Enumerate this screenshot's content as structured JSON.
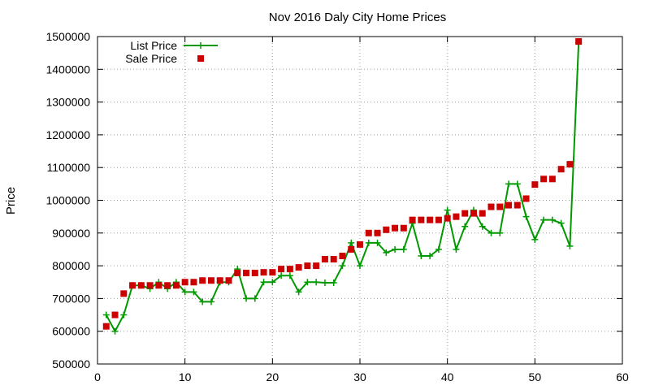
{
  "chart_data": {
    "type": "line",
    "title": "Nov 2016 Daly City Home Prices",
    "xlabel": "",
    "ylabel": "Price",
    "xlim": [
      0,
      60
    ],
    "ylim": [
      500000,
      1500000
    ],
    "xticks": [
      0,
      10,
      20,
      30,
      40,
      50,
      60
    ],
    "yticks": [
      500000,
      600000,
      700000,
      800000,
      900000,
      1000000,
      1100000,
      1200000,
      1300000,
      1400000,
      1500000
    ],
    "xtick_labels": [
      "0",
      "10",
      "20",
      "30",
      "40",
      "50",
      "60"
    ],
    "ytick_labels": [
      "500000",
      "600000",
      "700000",
      "800000",
      "900000",
      "1000000",
      "1100000",
      "1200000",
      "1300000",
      "1400000",
      "1500000"
    ],
    "grid": true,
    "legend_position": "top-left",
    "x": [
      1,
      2,
      3,
      4,
      5,
      6,
      7,
      8,
      9,
      10,
      11,
      12,
      13,
      14,
      15,
      16,
      17,
      18,
      19,
      20,
      21,
      22,
      23,
      24,
      25,
      26,
      27,
      28,
      29,
      30,
      31,
      32,
      33,
      34,
      35,
      36,
      37,
      38,
      39,
      40,
      41,
      42,
      43,
      44,
      45,
      46,
      47,
      48,
      49,
      50,
      51,
      52,
      53,
      54,
      55
    ],
    "series": [
      {
        "name": "List Price",
        "style": "linespoints",
        "color": "#009900",
        "values": [
          650000,
          600000,
          650000,
          740000,
          740000,
          730000,
          750000,
          730000,
          750000,
          720000,
          720000,
          690000,
          690000,
          750000,
          750000,
          790000,
          700000,
          700000,
          750000,
          750000,
          770000,
          770000,
          720000,
          750000,
          750000,
          748000,
          748000,
          800000,
          870000,
          800000,
          870000,
          870000,
          840000,
          850000,
          850000,
          930000,
          830000,
          830000,
          850000,
          970000,
          850000,
          920000,
          970000,
          920000,
          900000,
          900000,
          1050000,
          1050000,
          950000,
          880000,
          940000,
          940000,
          930000,
          860000,
          1480000
        ]
      },
      {
        "name": "Sale Price",
        "style": "points",
        "color": "#cc0000",
        "values": [
          615000,
          650000,
          715000,
          740000,
          740000,
          740000,
          740000,
          740000,
          740000,
          750000,
          750000,
          755000,
          755000,
          755000,
          755000,
          778000,
          778000,
          778000,
          780000,
          780000,
          790000,
          790000,
          795000,
          800000,
          800000,
          820000,
          820000,
          830000,
          850000,
          865000,
          900000,
          900000,
          910000,
          915000,
          915000,
          940000,
          940000,
          940000,
          940000,
          945000,
          950000,
          960000,
          960000,
          960000,
          980000,
          980000,
          985000,
          985000,
          1005000,
          1048000,
          1065000,
          1065000,
          1095000,
          1110000,
          1485000
        ]
      }
    ]
  }
}
